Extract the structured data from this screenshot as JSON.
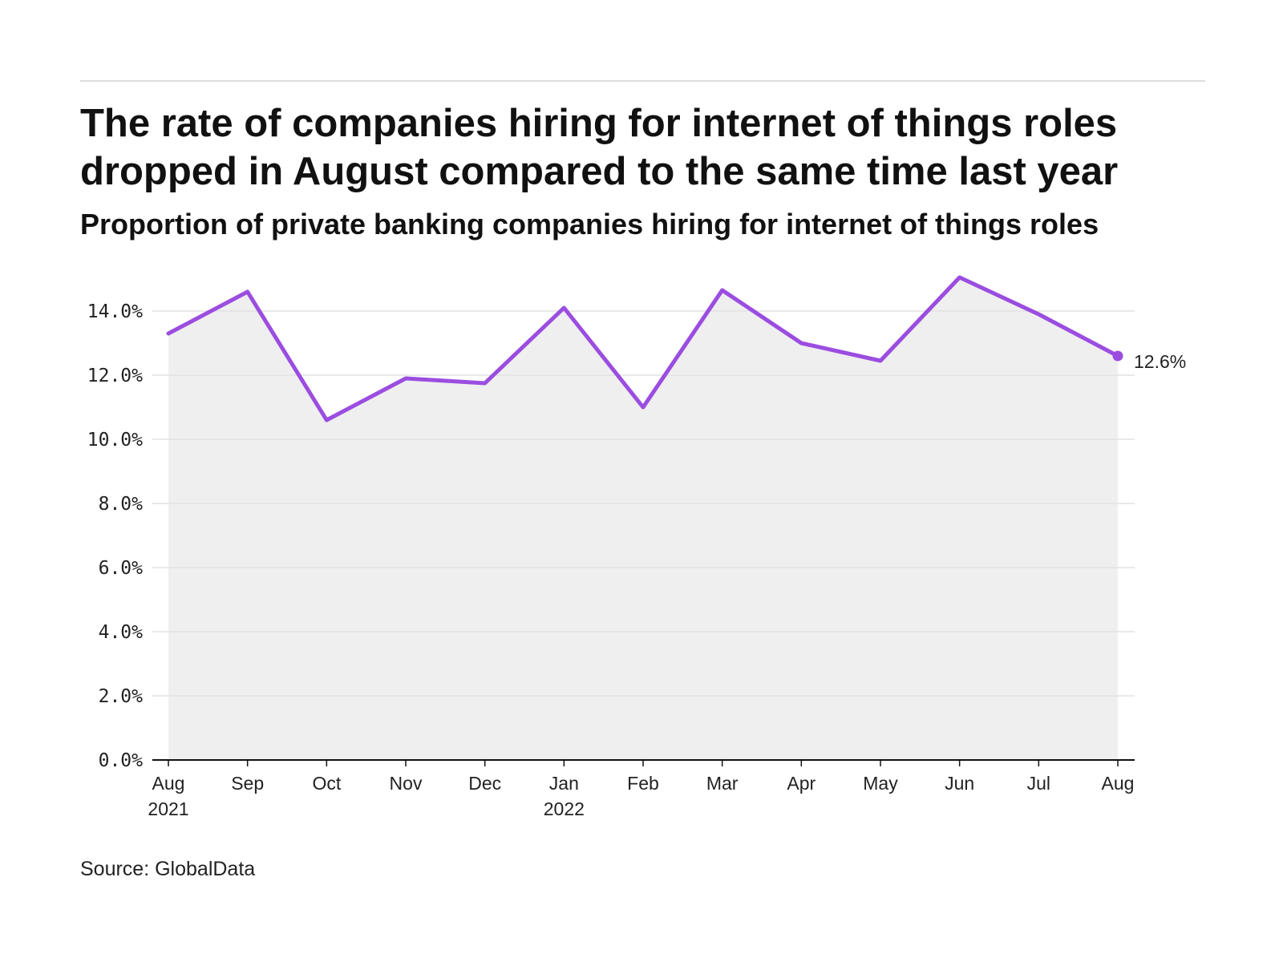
{
  "title": "The rate of companies hiring for internet of things roles dropped in August compared to the same time last year",
  "subtitle": "Proportion of private banking companies hiring for internet of things roles",
  "source": "Source: GlobalData",
  "colors": {
    "line": "#9b4de0",
    "area": "#efefef",
    "grid": "#e2e2e2",
    "axis": "#111111"
  },
  "chart_data": {
    "type": "line",
    "title": "The rate of companies hiring for internet of things roles dropped in August compared to the same time last year",
    "subtitle": "Proportion of private banking companies hiring for internet of things roles",
    "xlabel": "",
    "ylabel": "",
    "x": [
      "Aug 2021",
      "Sep 2021",
      "Oct 2021",
      "Nov 2021",
      "Dec 2021",
      "Jan 2022",
      "Feb 2022",
      "Mar 2022",
      "Apr 2022",
      "May 2022",
      "Jun 2022",
      "Jul 2022",
      "Aug 2022"
    ],
    "x_tick_labels": [
      [
        "Aug",
        "2021"
      ],
      [
        "Sep"
      ],
      [
        "Oct"
      ],
      [
        "Nov"
      ],
      [
        "Dec"
      ],
      [
        "Jan",
        "2022"
      ],
      [
        "Feb"
      ],
      [
        "Mar"
      ],
      [
        "Apr"
      ],
      [
        "May"
      ],
      [
        "Jun"
      ],
      [
        "Jul"
      ],
      [
        "Aug"
      ]
    ],
    "series": [
      {
        "values": [
          13.3,
          14.6,
          10.6,
          11.9,
          11.75,
          14.1,
          11.0,
          14.65,
          13.0,
          12.45,
          15.05,
          13.9,
          12.6
        ]
      }
    ],
    "ylim": [
      0,
      15
    ],
    "y_ticks": [
      0,
      2,
      4,
      6,
      8,
      10,
      12,
      14
    ],
    "y_tick_labels": [
      "0.0%",
      "2.0%",
      "4.0%",
      "6.0%",
      "8.0%",
      "10.0%",
      "12.0%",
      "14.0%"
    ],
    "end_label": "12.6%",
    "grid": true,
    "area_fill": true,
    "legend": "none"
  }
}
